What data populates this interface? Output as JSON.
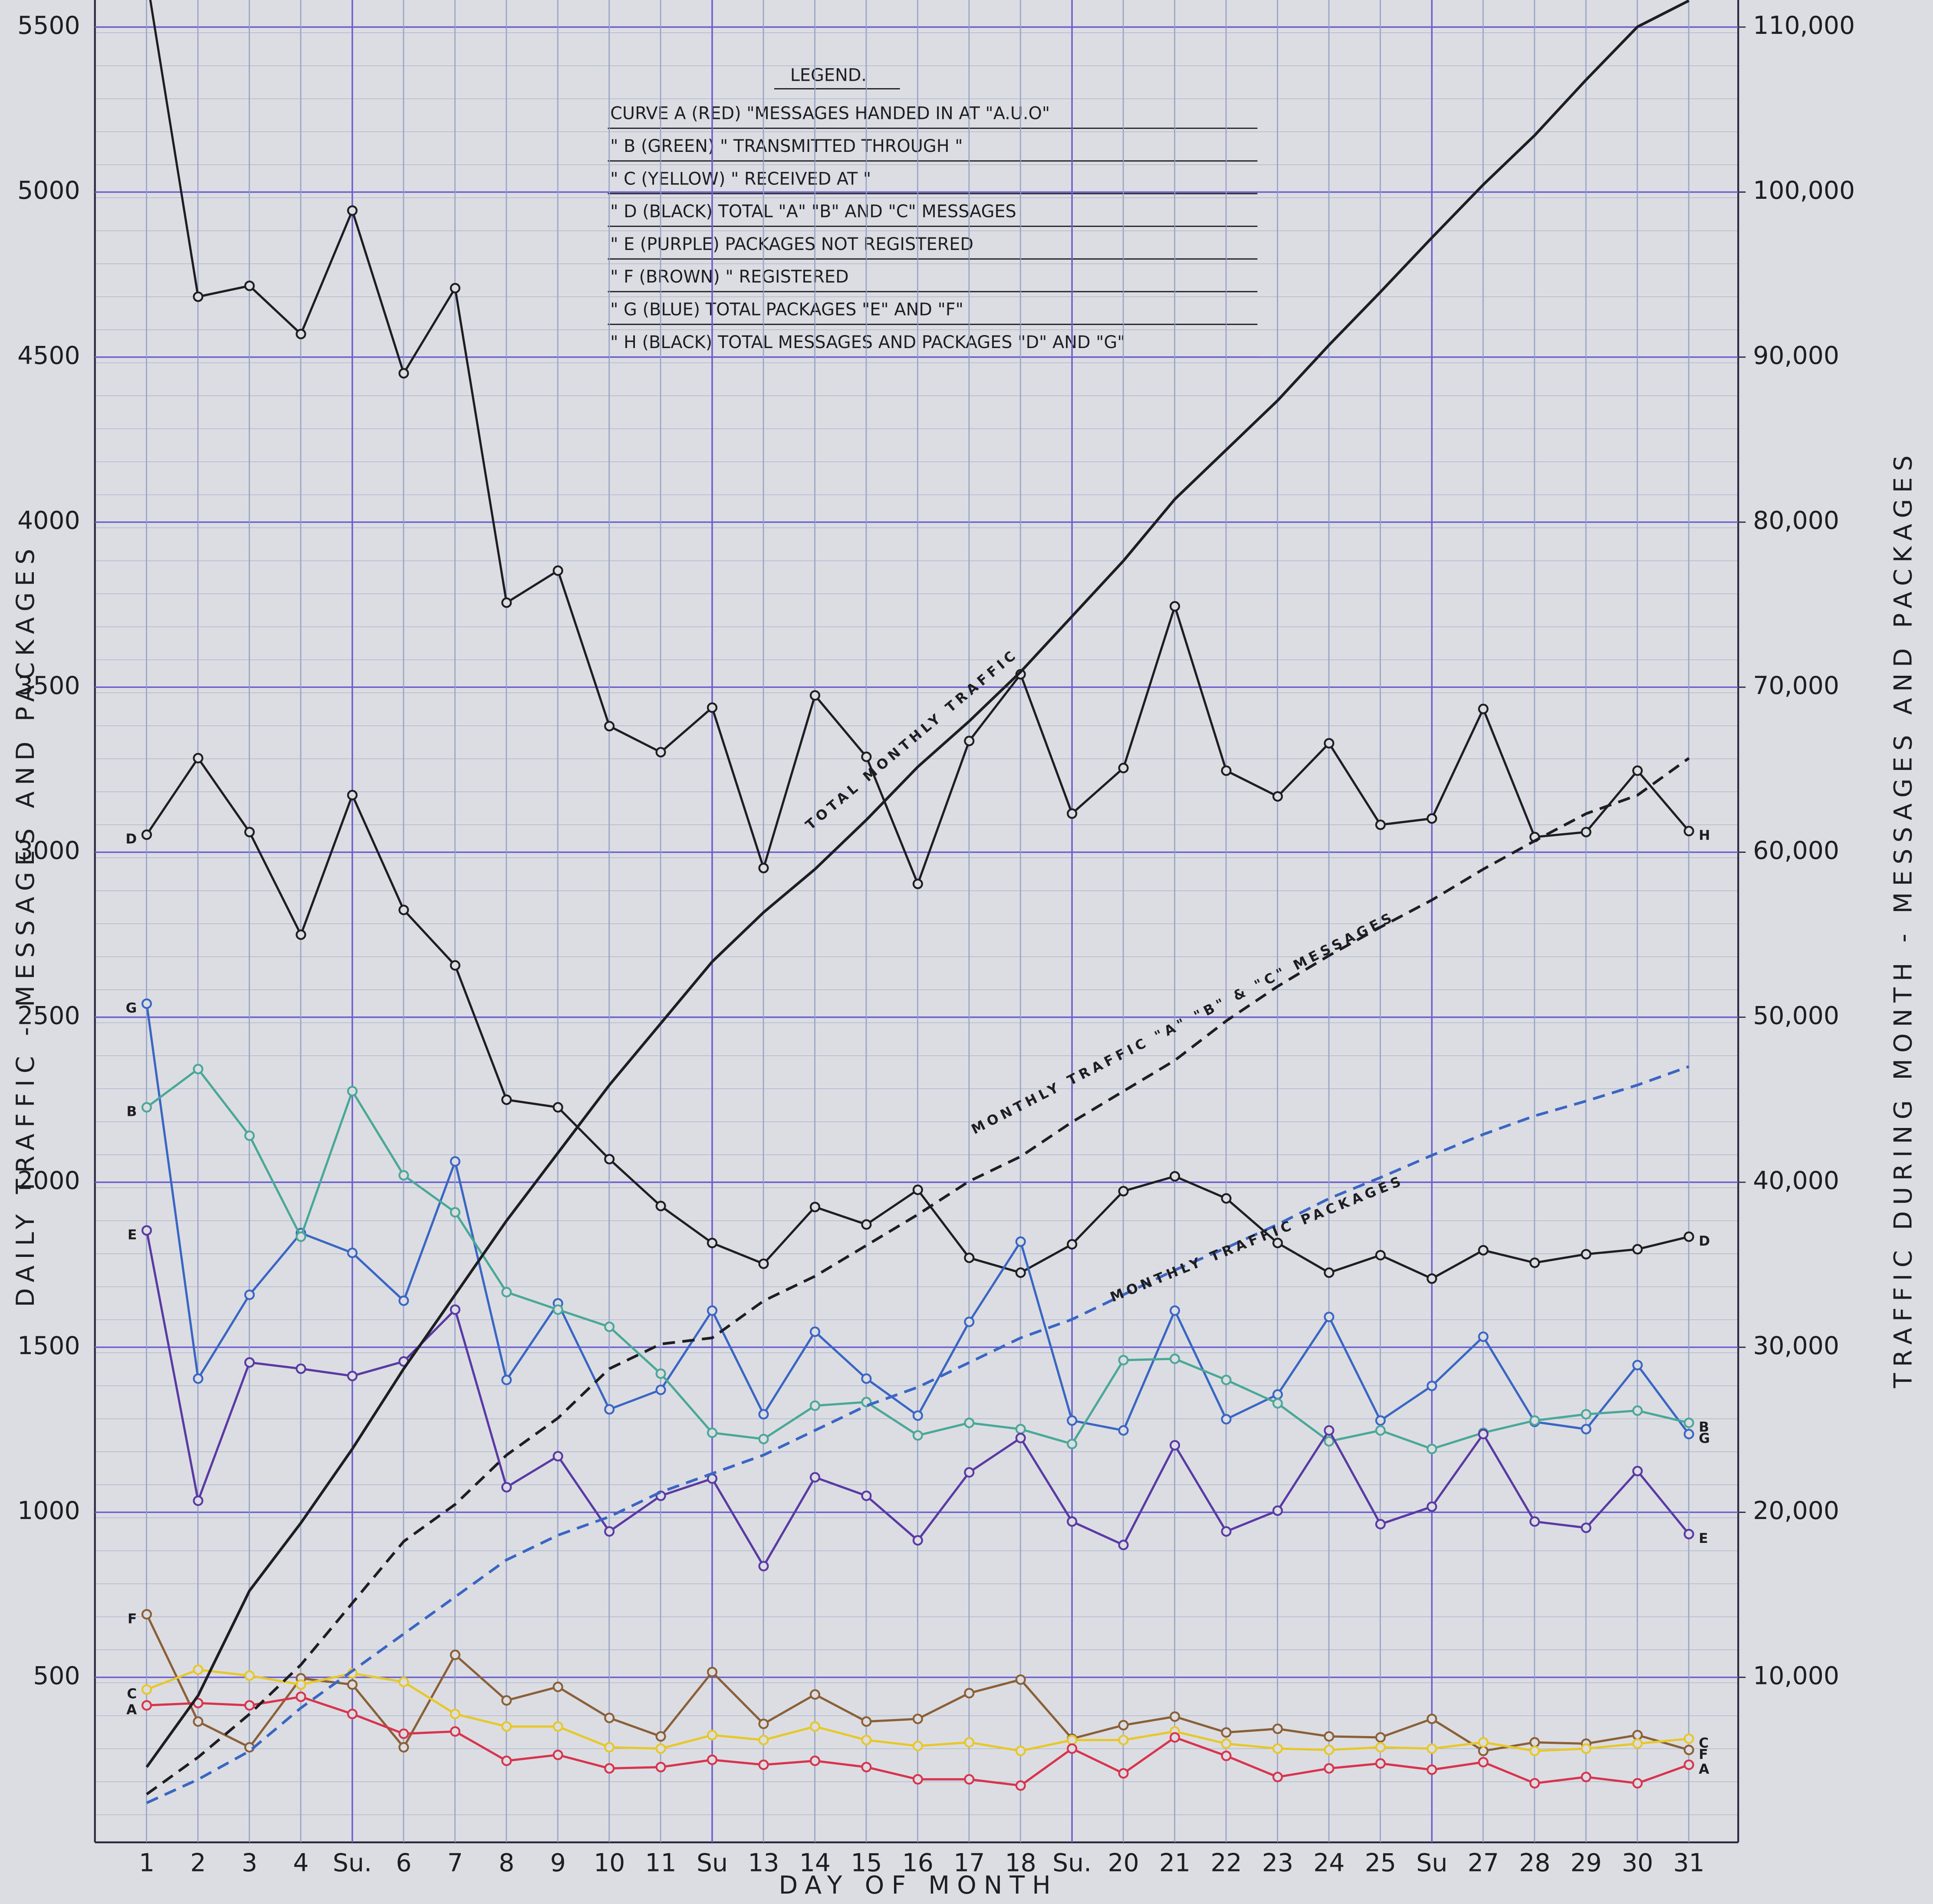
{
  "chart_data": {
    "type": "line",
    "xlabel": "DAY OF MONTH",
    "ylabel": "DAILY TRAFFIC - MESSAGES AND PACKAGES",
    "y2label": "TRAFFIC DURING MONTH - MESSAGES AND PACKAGES",
    "categories": [
      "1",
      "2",
      "3",
      "4",
      "Su.",
      "6",
      "7",
      "8",
      "9",
      "10",
      "11",
      "Su",
      "13",
      "14",
      "15",
      "16",
      "17",
      "18",
      "Su.",
      "20",
      "21",
      "22",
      "23",
      "24",
      "25",
      "Su",
      "27",
      "28",
      "29",
      "30",
      "31"
    ],
    "ylim": [
      0,
      5582
    ],
    "yticks": [
      500,
      1000,
      1500,
      2000,
      2500,
      3000,
      3500,
      4000,
      4500,
      5000,
      5500
    ],
    "y2lim": [
      0,
      111640
    ],
    "y2ticks": [
      {
        "value": 10000,
        "label": "10,000"
      },
      {
        "value": 20000,
        "label": "20,000"
      },
      {
        "value": 30000,
        "label": "30,000"
      },
      {
        "value": 40000,
        "label": "40,000"
      },
      {
        "value": 50000,
        "label": "50,000"
      },
      {
        "value": 60000,
        "label": "60,000"
      },
      {
        "value": 70000,
        "label": "70,000"
      },
      {
        "value": 80000,
        "label": "80,000"
      },
      {
        "value": 90000,
        "label": "90,000"
      },
      {
        "value": 100000,
        "label": "100,000"
      },
      {
        "value": 110000,
        "label": "110,000"
      }
    ],
    "grid": true,
    "legend_title": "LEGEND.",
    "legend_rows": [
      "CURVE A (RED) \"MESSAGES HANDED IN AT \"A.U.O\"",
      "\" B (GREEN) \" TRANSMITTED THROUGH \"",
      "\" C (YELLOW) \" RECEIVED AT \"",
      "\" D (BLACK) TOTAL \"A\" \"B\" AND \"C\" MESSAGES",
      "\" E (PURPLE) PACKAGES NOT REGISTERED",
      "\" F (BROWN) \" REGISTERED",
      "\" G (BLUE) TOTAL PACKAGES \"E\" AND \"F\"",
      "\" H (BLACK) TOTAL MESSAGES AND PACKAGES \"D\" AND \"G\""
    ],
    "annotations": [
      "TOTAL MONTHLY TRAFFIC",
      "MONTHLY TRAFFIC \"A\" \"B\" & \"C\" MESSAGES",
      "MONTHLY TRAFFIC PACKAGES"
    ],
    "series": [
      {
        "name": "H",
        "color": "#1e1e22",
        "values": [
          5650,
          4683,
          4716,
          4570,
          4944,
          4451,
          4709,
          3756,
          3853,
          3382,
          3303,
          3438,
          2952,
          3475,
          3289,
          2904,
          3337,
          3539,
          3117,
          3255,
          3745,
          3247,
          3169,
          3330,
          3083,
          3102,
          3434,
          3046,
          3061,
          3247,
          3064
        ]
      },
      {
        "name": "D",
        "color": "#1e1e22",
        "values": [
          3053,
          3285,
          3061,
          2750,
          3173,
          2825,
          2657,
          2250,
          2227,
          2070,
          1928,
          1816,
          1753,
          1925,
          1872,
          1977,
          1771,
          1726,
          1812,
          1973,
          2018,
          1951,
          1816,
          1726,
          1779,
          1708,
          1794,
          1756,
          1782,
          1797,
          1835
        ]
      },
      {
        "name": "G",
        "color": "#3a66c4",
        "values": [
          2541,
          1405,
          1659,
          1846,
          1786,
          1641,
          2063,
          1401,
          1633,
          1312,
          1371,
          1611,
          1297,
          1547,
          1405,
          1293,
          1577,
          1820,
          1278,
          1248,
          1611,
          1282,
          1357,
          1592,
          1278,
          1383,
          1532,
          1274,
          1252,
          1446,
          1237
        ]
      },
      {
        "name": "B",
        "color": "#4aa898",
        "values": [
          2227,
          2343,
          2141,
          1835,
          2276,
          2021,
          1909,
          1667,
          1614,
          1562,
          1420,
          1241,
          1222,
          1323,
          1334,
          1233,
          1271,
          1252,
          1207,
          1461,
          1465,
          1401,
          1330,
          1215,
          1248,
          1192,
          1241,
          1278,
          1297,
          1308,
          1271
        ]
      },
      {
        "name": "E",
        "color": "#5a3aa4",
        "values": [
          1854,
          1035,
          1454,
          1435,
          1413,
          1457,
          1614,
          1076,
          1170,
          942,
          1050,
          1102,
          837,
          1106,
          1050,
          915,
          1121,
          1225,
          972,
          901,
          1203,
          942,
          1005,
          1248,
          964,
          1017,
          1237,
          972,
          953,
          1125,
          934
        ]
      },
      {
        "name": "F",
        "color": "#8a6038",
        "values": [
          691,
          366,
          288,
          497,
          478,
          288,
          568,
          430,
          471,
          377,
          321,
          516,
          359,
          448,
          366,
          374,
          452,
          493,
          314,
          355,
          381,
          333,
          344,
          321,
          318,
          374,
          277,
          303,
          299,
          325,
          280
        ]
      },
      {
        "name": "C",
        "color": "#e6c82a",
        "values": [
          463,
          523,
          505,
          478,
          512,
          486,
          389,
          351,
          351,
          288,
          284,
          325,
          310,
          351,
          310,
          292,
          303,
          277,
          310,
          310,
          336,
          299,
          284,
          280,
          288,
          284,
          303,
          277,
          284,
          299,
          314
        ]
      },
      {
        "name": "A",
        "color": "#d8344e",
        "values": [
          415,
          422,
          415,
          441,
          389,
          329,
          336,
          247,
          265,
          224,
          228,
          250,
          235,
          247,
          228,
          191,
          191,
          172,
          284,
          209,
          318,
          262,
          198,
          224,
          239,
          220,
          243,
          179,
          198,
          179,
          235
        ]
      },
      {
        "name": "TOTAL MONTHLY TRAFFIC",
        "axis": "y2",
        "style": "solid",
        "color": "#1e1e22",
        "values": [
          4560,
          8894,
          15247,
          19358,
          23842,
          28700,
          33184,
          37669,
          41780,
          45890,
          49627,
          53364,
          56354,
          58970,
          61960,
          65173,
          67939,
          70928,
          74292,
          77655,
          81392,
          84382,
          87372,
          90735,
          93948,
          97237,
          100451,
          103440,
          106804,
          110017,
          111600
        ]
      },
      {
        "name": "MONTHLY TRAFFIC \"A\" \"B\" & \"C\" MESSAGES",
        "axis": "y2",
        "style": "dashed",
        "color": "#1e1e22",
        "values": [
          2915,
          5157,
          7773,
          10762,
          14500,
          18236,
          20479,
          23468,
          25710,
          28700,
          30195,
          30569,
          32811,
          34306,
          36174,
          38043,
          40061,
          41556,
          43648,
          45517,
          47385,
          49777,
          51870,
          53738,
          55457,
          57101,
          58970,
          60689,
          62333,
          63454,
          65696
        ]
      },
      {
        "name": "MONTHLY TRAFFIC PACKAGES",
        "axis": "y2",
        "style": "dashed",
        "color": "#3a66c4",
        "values": [
          2392,
          3812,
          5531,
          8147,
          10389,
          12631,
          14873,
          17115,
          18610,
          19731,
          21226,
          22347,
          23468,
          24963,
          26458,
          27579,
          29074,
          30569,
          31690,
          33185,
          34679,
          36025,
          37445,
          39014,
          40285,
          41630,
          42901,
          44022,
          44919,
          45890,
          47011
        ]
      }
    ]
  }
}
